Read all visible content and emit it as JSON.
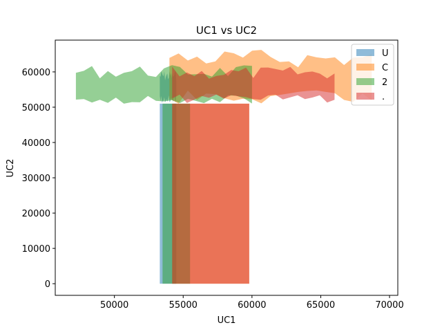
{
  "chart_data": {
    "type": "area",
    "title": "UC1 vs UC2",
    "xlabel": "UC1",
    "ylabel": "UC2",
    "xlim": [
      45700,
      70600
    ],
    "ylim": [
      -3300,
      69000
    ],
    "xticks": [
      50000,
      55000,
      60000,
      65000,
      70000
    ],
    "yticks": [
      0,
      10000,
      20000,
      30000,
      40000,
      50000,
      60000
    ],
    "legend_position": "top-right",
    "grid": false,
    "series": [
      {
        "name": "U",
        "color": "#1f77b4",
        "opacity": 0.5,
        "column": [
          53300,
          54500
        ],
        "fan": {
          "x_min": 53300,
          "x_max": 54500,
          "y_min": 51000,
          "y_max": 60500
        }
      },
      {
        "name": "C",
        "color": "#ff7f0e",
        "opacity": 0.5,
        "column": [
          54200,
          59800
        ],
        "fan": {
          "x_min": 54000,
          "x_max": 68700,
          "y_min": 51000,
          "y_max": 66500
        }
      },
      {
        "name": "2",
        "color": "#2ca02c",
        "opacity": 0.5,
        "column": [
          53500,
          55500
        ],
        "fan": {
          "x_min": 47200,
          "x_max": 60000,
          "y_min": 51000,
          "y_max": 62000
        }
      },
      {
        "name": ".",
        "color": "#d62728",
        "opacity": 0.5,
        "column": [
          54200,
          59800
        ],
        "fan": {
          "x_min": 54200,
          "x_max": 66000,
          "y_min": 51000,
          "y_max": 61500
        }
      }
    ]
  }
}
